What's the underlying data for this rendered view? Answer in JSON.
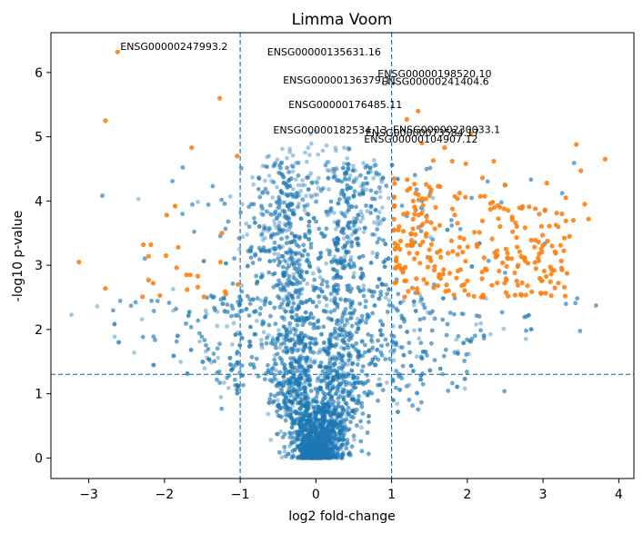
{
  "chart_data": {
    "type": "scatter",
    "title": "Limma Voom",
    "xlabel": "log2 fold-change",
    "ylabel": "-log10 p-value",
    "xlim": [
      -3.5,
      4.2
    ],
    "ylim": [
      -0.32,
      6.62
    ],
    "xticks": [
      -3,
      -2,
      -1,
      0,
      1,
      2,
      3,
      4
    ],
    "yticks": [
      0,
      1,
      2,
      3,
      4,
      5,
      6
    ],
    "grid": false,
    "thresholds": {
      "vlines": [
        -1,
        1
      ],
      "hline": 1.301,
      "style": "dashed"
    },
    "colors": {
      "background_points": "#1f77b4",
      "significant_points": "#ff7f0e",
      "threshold_lines": "#1f77b4"
    },
    "series": [
      {
        "points_note": "cloud of non-significant genes",
        "role": "background",
        "n": 5200,
        "alpha": 0.4
      },
      {
        "role": "significant",
        "points": [
          [
            -3.13,
            3.05
          ],
          [
            -2.78,
            2.64
          ],
          [
            -2.78,
            5.25
          ],
          [
            -2.62,
            6.32
          ],
          [
            -2.29,
            2.51
          ],
          [
            -2.28,
            3.32
          ],
          [
            -2.21,
            3.14
          ],
          [
            -2.21,
            2.77
          ],
          [
            -2.18,
            3.32
          ],
          [
            -2.15,
            2.72
          ],
          [
            -2.06,
            2.53
          ],
          [
            -1.98,
            3.15
          ],
          [
            -1.97,
            3.78
          ],
          [
            -1.86,
            3.92
          ],
          [
            -1.84,
            2.96
          ],
          [
            -1.82,
            3.28
          ],
          [
            -1.71,
            2.85
          ],
          [
            -1.7,
            2.62
          ],
          [
            -1.66,
            2.85
          ],
          [
            -1.64,
            4.83
          ],
          [
            -1.56,
            2.83
          ],
          [
            -1.56,
            2.66
          ],
          [
            -1.48,
            2.51
          ],
          [
            -1.27,
            5.6
          ],
          [
            -1.26,
            3.05
          ],
          [
            -1.24,
            3.5
          ],
          [
            -1.2,
            2.59
          ],
          [
            -1.19,
            2.55
          ],
          [
            -1.04,
            4.7
          ],
          [
            -1.03,
            2.7
          ],
          [
            1.2,
            5.27
          ],
          [
            1.35,
            5.4
          ],
          [
            1.4,
            4.9
          ],
          [
            1.55,
            4.63
          ],
          [
            1.7,
            4.83
          ],
          [
            1.8,
            4.62
          ],
          [
            1.98,
            4.58
          ],
          [
            2.05,
            5.05
          ],
          [
            2.2,
            4.36
          ],
          [
            2.35,
            4.62
          ],
          [
            2.4,
            3.93
          ],
          [
            2.5,
            4.25
          ],
          [
            2.65,
            3.43
          ],
          [
            2.8,
            3.03
          ],
          [
            2.95,
            3.18
          ],
          [
            3.05,
            4.28
          ],
          [
            3.12,
            3.3
          ],
          [
            3.2,
            3.6
          ],
          [
            3.25,
            3.8
          ],
          [
            3.3,
            4.05
          ],
          [
            3.35,
            3.45
          ],
          [
            3.4,
            3.7
          ],
          [
            3.44,
            4.88
          ],
          [
            3.5,
            4.47
          ],
          [
            3.55,
            3.95
          ],
          [
            3.6,
            3.72
          ],
          [
            3.82,
            4.65
          ],
          [
            1.1,
            3.0
          ],
          [
            1.3,
            3.1
          ],
          [
            1.6,
            3.2
          ]
        ],
        "extra_cloud_note": "dense orange cluster between x 1.0-3.3 and y 2.5-4.3"
      }
    ],
    "annotations": [
      {
        "label": "ENSG00000247993.2",
        "x": -2.62,
        "y": 6.32
      },
      {
        "label": "ENSG00000135631.16",
        "x": -0.68,
        "y": 6.24
      },
      {
        "label": "ENSG00000136379.11",
        "x": -0.47,
        "y": 5.8
      },
      {
        "label": "ENSG00000198520.10",
        "x": 0.78,
        "y": 5.9
      },
      {
        "label": "ENSG00000241404.6",
        "x": 0.83,
        "y": 5.78
      },
      {
        "label": "ENSG00000176485.11",
        "x": -0.4,
        "y": 5.42
      },
      {
        "label": "ENSG00000182534.13",
        "x": -0.6,
        "y": 5.02
      },
      {
        "label": "ENSG00000230033.1",
        "x": 0.98,
        "y": 5.03
      },
      {
        "label": "ENSG00000073584.17",
        "x": 0.62,
        "y": 4.98
      },
      {
        "label": "ENSG00000104907.12",
        "x": 0.6,
        "y": 4.88
      }
    ]
  }
}
